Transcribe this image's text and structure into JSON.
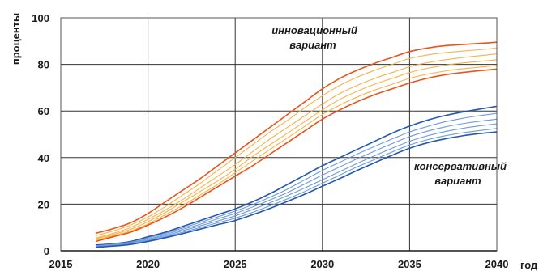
{
  "chart_data": {
    "type": "line",
    "title": "",
    "xlabel": "год",
    "ylabel": "проценты",
    "xlim": [
      2015,
      2040
    ],
    "ylim": [
      0,
      100
    ],
    "xticks": [
      2015,
      2020,
      2025,
      2030,
      2035,
      2040
    ],
    "yticks": [
      0,
      20,
      40,
      60,
      80,
      100
    ],
    "grid": true,
    "x": [
      2017,
      2018,
      2019,
      2020,
      2021,
      2022,
      2023,
      2024,
      2025,
      2026,
      2027,
      2028,
      2029,
      2030,
      2031,
      2032,
      2033,
      2034,
      2035,
      2036,
      2037,
      2038,
      2039,
      2040
    ],
    "groups": [
      {
        "label_lines": [
          "инновационный",
          "вариант"
        ],
        "color": "#e8541c",
        "inner_color": "#f6b24a",
        "series": [
          {
            "values": [
              7.5,
              9.5,
              12,
              16,
              21,
              26,
              31,
              36.5,
              42,
              47.5,
              53,
              58.5,
              64,
              69.5,
              74,
              77.5,
              80.5,
              83,
              85.5,
              87,
              88,
              88.5,
              89,
              89.5
            ]
          },
          {
            "values": [
              6.5,
              8.5,
              11,
              14.5,
              19,
              24,
              29,
              34.5,
              40,
              45.5,
              51,
              56,
              61.5,
              66.5,
              71,
              74.5,
              77.5,
              80,
              82.5,
              84,
              85,
              85.7,
              86.3,
              87
            ]
          },
          {
            "values": [
              5.5,
              7.5,
              10,
              13.5,
              17.5,
              22,
              27,
              32,
              37,
              42.5,
              48,
              53,
              58,
              63,
              67.5,
              71,
              74,
              76.5,
              79,
              80.7,
              81.9,
              82.9,
              83.7,
              84.5
            ]
          },
          {
            "values": [
              5,
              7,
              9.2,
              12.5,
              16.5,
              21,
              25.5,
              30,
              35,
              40.5,
              45.5,
              50.5,
              55.5,
              60.5,
              65,
              68.5,
              71.5,
              74,
              76.5,
              78.3,
              79.6,
              80.6,
              81.3,
              82
            ]
          },
          {
            "values": [
              4.5,
              6.5,
              8.5,
              11.5,
              15.5,
              19.5,
              24,
              28.5,
              33.5,
              38.5,
              43.5,
              48.5,
              53.5,
              58.5,
              62.5,
              66,
              69,
              71.5,
              74,
              75.8,
              77.1,
              78.1,
              78.8,
              79.5
            ]
          },
          {
            "values": [
              4,
              6,
              8,
              11,
              14.5,
              18.5,
              23,
              27.5,
              32,
              36.5,
              41.5,
              46.5,
              51.5,
              56.5,
              60.5,
              64,
              67,
              69.5,
              72,
              74,
              75.5,
              76.5,
              77.3,
              78
            ]
          }
        ]
      },
      {
        "label_lines": [
          "консервативный",
          "вариант"
        ],
        "color": "#2358b0",
        "inner_color": "#6f9ad6",
        "series": [
          {
            "values": [
              2.5,
              3,
              4,
              6,
              8,
              10.5,
              13,
              15.5,
              18,
              21,
              24.5,
              28.5,
              32.5,
              36.5,
              40,
              43.5,
              47,
              50.5,
              53.5,
              56,
              58,
              59.5,
              60.8,
              62
            ]
          },
          {
            "values": [
              2.2,
              2.8,
              3.7,
              5.5,
              7.5,
              9.8,
              12.2,
              14.6,
              17,
              19.8,
              23,
              26.5,
              30.5,
              34.5,
              38,
              41.5,
              44.8,
              48,
              51,
              53.3,
              55.3,
              56.8,
              58,
              59
            ]
          },
          {
            "values": [
              2,
              2.5,
              3.4,
              5,
              7,
              9.2,
              11.4,
              13.7,
              16,
              18.8,
              21.8,
              25,
              28.7,
              32.5,
              36,
              39.5,
              42.8,
              46,
              49,
              51.3,
              53.1,
              54.5,
              55.6,
              56.5
            ]
          },
          {
            "values": [
              1.8,
              2.3,
              3.1,
              4.6,
              6.5,
              8.6,
              10.7,
              12.8,
              15,
              17.7,
              20.6,
              23.7,
              27,
              30.5,
              34,
              37.5,
              40.8,
              44,
              47,
              49.3,
              51.1,
              52.5,
              53.6,
              54.5
            ]
          },
          {
            "values": [
              1.6,
              2.1,
              2.9,
              4.3,
              6,
              8,
              10,
              12,
              14,
              16.5,
              19.3,
              22.3,
              25.5,
              29,
              32.5,
              36,
              39.2,
              42.4,
              45.4,
              47.6,
              49.3,
              50.6,
              51.6,
              52.5
            ]
          },
          {
            "values": [
              1.5,
              2,
              2.7,
              4,
              5.6,
              7.4,
              9.3,
              11.2,
              13,
              15.5,
              18.2,
              21.2,
              24.3,
              27.7,
              31,
              34.5,
              37.8,
              41,
              44,
              46.3,
              48,
              49.3,
              50.3,
              51
            ]
          }
        ]
      }
    ]
  }
}
